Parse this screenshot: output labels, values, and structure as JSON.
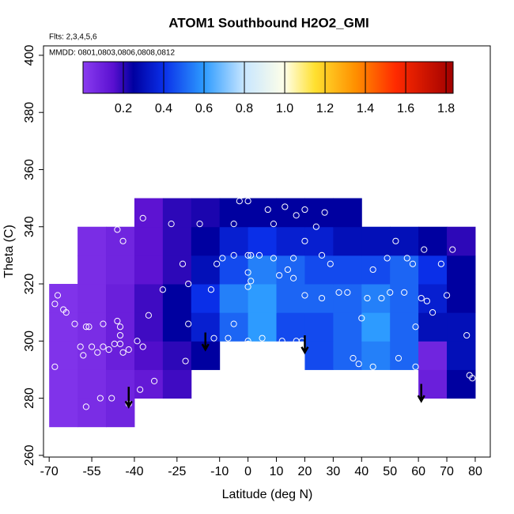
{
  "chart_data": {
    "type": "heatmap",
    "title": "ATOM1 Southbound H2O2_GMI",
    "subtitle": "Flts: 2,3,4,5,6",
    "annotation": "MMDD: 0801,0803,0806,0808,0812",
    "x_label": "Latitude (deg N)",
    "y_label": "Theta (C)",
    "xlim": [
      -72,
      85.3
    ],
    "ylim": [
      259.4,
      403.3
    ],
    "xticks": [
      -70,
      -55,
      -40,
      -25,
      -10,
      0,
      10,
      20,
      30,
      40,
      50,
      60,
      70,
      80
    ],
    "yticks": [
      260,
      280,
      300,
      320,
      340,
      360,
      380,
      400
    ],
    "colorbar": {
      "lim": [
        0,
        1.835
      ],
      "ticks": [
        0.2,
        0.4,
        0.6,
        0.8,
        {
          "value": 1,
          "label": "1.0"
        },
        1.2,
        1.4,
        1.6,
        1.8
      ],
      "stops": [
        0,
        0.15,
        0.25,
        0.4,
        0.6,
        0.8,
        1,
        1.15,
        1.35,
        1.55,
        1.835
      ],
      "colors": [
        "#8a3cf0",
        "#5a10d0",
        "#0000a0",
        "#0a2fe8",
        "#2d9bff",
        "#c8e6ff",
        "#ffffe8",
        "#ffe030",
        "#ff9000",
        "#ff2a00",
        "#a00000"
      ]
    },
    "field": {
      "x_edges": [
        -70,
        -60,
        -50,
        -40,
        -30,
        -20,
        -10,
        0,
        10,
        20,
        30,
        40,
        50,
        60,
        70,
        80
      ],
      "y_edges": [
        270,
        280,
        290,
        300,
        310,
        320,
        330,
        340,
        350
      ],
      "values": [
        [
          0.03,
          0.05,
          0.08,
          null,
          null,
          null,
          null,
          null,
          null,
          null,
          null,
          null,
          null,
          null,
          null
        ],
        [
          0.03,
          0.05,
          0.08,
          0.12,
          0.18,
          null,
          null,
          null,
          null,
          null,
          null,
          null,
          null,
          0.1,
          0.25
        ],
        [
          0.03,
          0.05,
          0.1,
          0.16,
          0.2,
          0.25,
          null,
          null,
          null,
          0.45,
          0.5,
          0.55,
          0.5,
          0.08,
          0.3
        ],
        [
          0.03,
          0.05,
          0.1,
          0.18,
          0.25,
          0.35,
          0.5,
          0.6,
          0.45,
          0.45,
          0.5,
          0.6,
          0.5,
          0.3,
          0.3
        ],
        [
          0.03,
          0.05,
          0.1,
          0.18,
          0.25,
          0.4,
          0.55,
          0.6,
          0.5,
          0.5,
          0.5,
          0.55,
          0.5,
          0.35,
          0.25
        ],
        [
          null,
          0.05,
          0.08,
          0.14,
          0.2,
          0.3,
          0.45,
          0.55,
          0.5,
          0.45,
          0.45,
          0.45,
          0.5,
          0.4,
          0.25
        ],
        [
          null,
          0.05,
          0.08,
          0.14,
          0.2,
          0.25,
          0.35,
          0.4,
          0.35,
          0.35,
          0.3,
          0.3,
          0.3,
          0.25,
          0.2
        ],
        [
          null,
          null,
          null,
          0.14,
          0.2,
          0.22,
          0.25,
          0.25,
          0.25,
          0.25,
          0.25,
          null,
          null,
          null,
          null
        ]
      ]
    },
    "points": {
      "x": [
        -68,
        -68,
        -67,
        -65,
        -64,
        -61,
        -57,
        -56,
        -59,
        -58,
        -55,
        -53,
        -51,
        -51,
        -49,
        -47,
        -46,
        -45,
        -45,
        -45,
        -44,
        -42,
        -39,
        -37,
        -35,
        -33,
        -38,
        -42,
        -48,
        -52,
        -57,
        -46,
        -44,
        -37,
        -30,
        -27,
        -23,
        -21,
        -21,
        -22,
        -17,
        -13,
        -12,
        -7,
        -11,
        -9,
        -5,
        -5,
        -5,
        -3,
        -2,
        0,
        0,
        1,
        0,
        1,
        0,
        0,
        0,
        4,
        5,
        7,
        9,
        9,
        11,
        12,
        13,
        14,
        16,
        17,
        17,
        16,
        19,
        20,
        20,
        20,
        24,
        26,
        26,
        27,
        29,
        32,
        35,
        37,
        39,
        40,
        42,
        43,
        44,
        44,
        47,
        49,
        50,
        52,
        53,
        55,
        56,
        58,
        59,
        59,
        61,
        62,
        63,
        65,
        68,
        70,
        72,
        77,
        78,
        79,
        78
      ],
      "y": [
        291,
        313,
        316,
        311,
        310,
        306,
        305,
        305,
        298,
        295,
        298,
        296,
        306,
        298,
        297,
        299,
        307,
        305,
        302,
        299,
        296,
        297,
        300,
        298,
        309,
        286,
        283,
        278,
        280,
        280,
        277,
        339,
        335,
        343,
        318,
        341,
        327,
        320,
        306,
        293,
        341,
        318,
        301,
        301,
        327,
        329,
        330,
        341,
        306,
        349,
        351,
        349,
        330,
        330,
        324,
        321,
        319,
        300,
        299,
        330,
        301,
        346,
        341,
        329,
        323,
        300,
        347,
        325,
        329,
        344,
        300,
        322,
        300,
        316,
        346,
        335,
        340,
        330,
        315,
        345,
        327,
        317,
        317,
        294,
        292,
        308,
        315,
        343,
        325,
        291,
        315,
        329,
        317,
        335,
        294,
        317,
        329,
        327,
        291,
        305,
        315,
        332,
        314,
        310,
        327,
        316,
        332,
        302,
        288,
        287,
        273
      ]
    },
    "arrows": [
      {
        "x": -42,
        "y": [
          284,
          277
        ]
      },
      {
        "x": -15,
        "y": [
          303,
          297
        ]
      },
      {
        "x": 20,
        "y": [
          302,
          296
        ]
      },
      {
        "x": 61,
        "y": [
          285,
          279
        ]
      }
    ]
  }
}
